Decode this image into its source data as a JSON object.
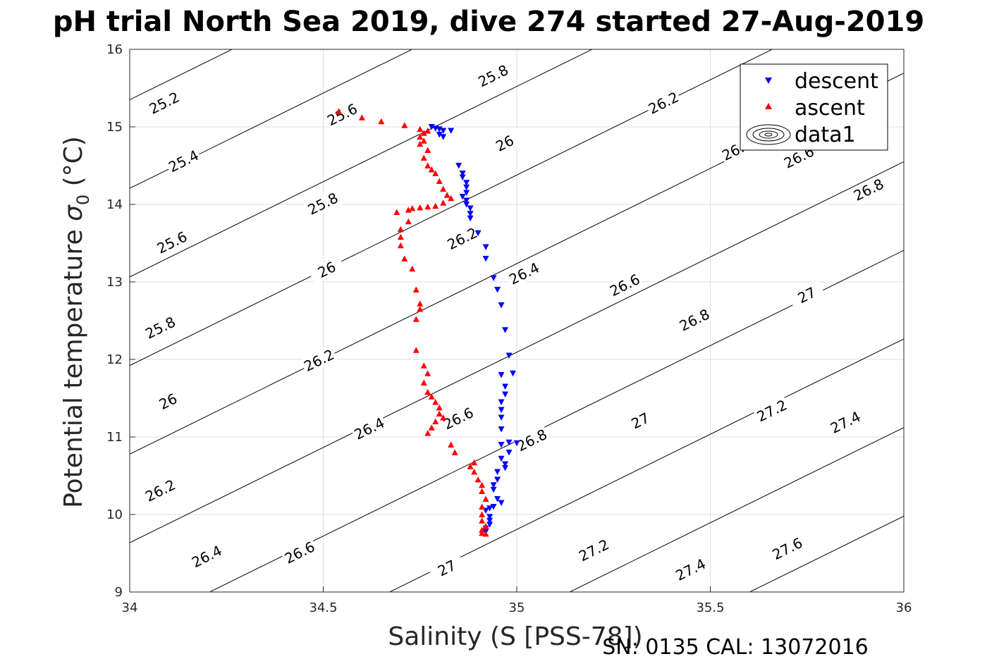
{
  "chart_data": {
    "type": "scatter",
    "title": "pH trial North Sea 2019, dive 274 started 27-Aug-2019",
    "xlabel": "Salinity (S [PSS-78])",
    "ylabel_text": "Potential temperature ",
    "ylabel_symbol": "σ",
    "ylabel_sub": "0",
    "ylabel_unit": " (°C)",
    "footer": "SN: 0135  CAL: 13072016",
    "xlim": [
      34,
      36
    ],
    "ylim": [
      9,
      16
    ],
    "xticks": [
      "34",
      "34.5",
      "35",
      "35.5",
      "36"
    ],
    "yticks": [
      "9",
      "10",
      "11",
      "12",
      "13",
      "14",
      "15",
      "16"
    ],
    "grid": true,
    "legend_position": "top-right",
    "legend": [
      "descent",
      "ascent",
      "data1"
    ],
    "colors": {
      "descent": "#0000ff",
      "ascent": "#ff0000",
      "contour": "#000000",
      "grid": "#dfdfdf"
    },
    "contours": {
      "levels": [
        25.2,
        25.4,
        25.6,
        25.8,
        26,
        26.2,
        26.4,
        26.6,
        26.8,
        27,
        27.2,
        27.4,
        27.6
      ],
      "labels": [
        {
          "text": "25.2",
          "x": 34.09,
          "y": 15.3
        },
        {
          "text": "25.4",
          "x": 34.14,
          "y": 14.55
        },
        {
          "text": "25.6",
          "x": 34.11,
          "y": 13.5
        },
        {
          "text": "25.8",
          "x": 34.08,
          "y": 12.4
        },
        {
          "text": "26",
          "x": 34.1,
          "y": 11.45
        },
        {
          "text": "26.2",
          "x": 34.08,
          "y": 10.3
        },
        {
          "text": "26.4",
          "x": 34.2,
          "y": 9.45
        },
        {
          "text": "25.6",
          "x": 34.55,
          "y": 15.15
        },
        {
          "text": "25.8",
          "x": 34.94,
          "y": 15.65
        },
        {
          "text": "25.8",
          "x": 34.5,
          "y": 14.0
        },
        {
          "text": "26",
          "x": 34.97,
          "y": 14.78
        },
        {
          "text": "26",
          "x": 34.51,
          "y": 13.15
        },
        {
          "text": "26.2",
          "x": 34.49,
          "y": 11.98
        },
        {
          "text": "26.2",
          "x": 35.38,
          "y": 15.3
        },
        {
          "text": "26.2",
          "x": 34.86,
          "y": 13.55
        },
        {
          "text": "26.4",
          "x": 34.62,
          "y": 11.1
        },
        {
          "text": "26.4",
          "x": 35.02,
          "y": 13.1
        },
        {
          "text": "26.4",
          "x": 35.57,
          "y": 14.7
        },
        {
          "text": "26.6",
          "x": 34.44,
          "y": 9.5
        },
        {
          "text": "26.6",
          "x": 34.85,
          "y": 11.23
        },
        {
          "text": "26.6",
          "x": 35.28,
          "y": 12.95
        },
        {
          "text": "26.6",
          "x": 35.73,
          "y": 14.6
        },
        {
          "text": "26.8",
          "x": 35.04,
          "y": 10.95
        },
        {
          "text": "26.8",
          "x": 35.46,
          "y": 12.5
        },
        {
          "text": "26.8",
          "x": 35.91,
          "y": 14.18
        },
        {
          "text": "27",
          "x": 34.82,
          "y": 9.3
        },
        {
          "text": "27",
          "x": 35.32,
          "y": 11.2
        },
        {
          "text": "27",
          "x": 35.75,
          "y": 12.82
        },
        {
          "text": "27.2",
          "x": 35.2,
          "y": 9.53
        },
        {
          "text": "27.2",
          "x": 35.66,
          "y": 11.33
        },
        {
          "text": "27.4",
          "x": 35.45,
          "y": 9.28
        },
        {
          "text": "27.4",
          "x": 35.85,
          "y": 11.18
        },
        {
          "text": "27.6",
          "x": 35.7,
          "y": 9.55
        }
      ]
    },
    "series": [
      {
        "name": "descent",
        "marker": "triangle-down",
        "points": [
          [
            34.78,
            15.0
          ],
          [
            34.79,
            14.98
          ],
          [
            34.8,
            14.97
          ],
          [
            34.81,
            14.95
          ],
          [
            34.83,
            14.95
          ],
          [
            34.8,
            14.9
          ],
          [
            34.81,
            14.87
          ],
          [
            34.85,
            14.5
          ],
          [
            34.86,
            14.4
          ],
          [
            34.86,
            14.35
          ],
          [
            34.87,
            14.28
          ],
          [
            34.87,
            14.22
          ],
          [
            34.87,
            14.15
          ],
          [
            34.86,
            14.1
          ],
          [
            34.87,
            14.05
          ],
          [
            34.87,
            14.0
          ],
          [
            34.88,
            13.95
          ],
          [
            34.88,
            13.88
          ],
          [
            34.88,
            13.82
          ],
          [
            34.9,
            13.63
          ],
          [
            34.92,
            13.45
          ],
          [
            34.92,
            13.3
          ],
          [
            34.94,
            13.05
          ],
          [
            34.95,
            12.9
          ],
          [
            34.96,
            12.7
          ],
          [
            34.97,
            12.38
          ],
          [
            34.98,
            12.05
          ],
          [
            34.99,
            11.82
          ],
          [
            34.96,
            11.8
          ],
          [
            34.97,
            11.65
          ],
          [
            34.97,
            11.55
          ],
          [
            34.96,
            11.45
          ],
          [
            34.96,
            11.35
          ],
          [
            34.96,
            11.25
          ],
          [
            34.96,
            11.1
          ],
          [
            34.96,
            10.9
          ],
          [
            34.98,
            10.93
          ],
          [
            35.0,
            10.92
          ],
          [
            34.98,
            10.8
          ],
          [
            34.96,
            10.72
          ],
          [
            34.97,
            10.65
          ],
          [
            34.97,
            10.6
          ],
          [
            34.95,
            10.55
          ],
          [
            34.95,
            10.45
          ],
          [
            34.94,
            10.38
          ],
          [
            34.94,
            10.32
          ],
          [
            34.95,
            10.2
          ],
          [
            34.96,
            10.15
          ],
          [
            34.94,
            10.1
          ],
          [
            34.93,
            10.08
          ],
          [
            34.92,
            10.05
          ],
          [
            34.93,
            9.97
          ],
          [
            34.93,
            9.92
          ],
          [
            34.93,
            9.87
          ],
          [
            34.92,
            9.82
          ],
          [
            34.92,
            9.78
          ]
        ]
      },
      {
        "name": "ascent",
        "marker": "triangle-up",
        "points": [
          [
            34.54,
            15.2
          ],
          [
            34.6,
            15.12
          ],
          [
            34.65,
            15.07
          ],
          [
            34.71,
            15.02
          ],
          [
            34.75,
            14.97
          ],
          [
            34.77,
            14.95
          ],
          [
            34.76,
            14.92
          ],
          [
            34.75,
            14.87
          ],
          [
            34.76,
            14.82
          ],
          [
            34.75,
            14.78
          ],
          [
            34.77,
            14.7
          ],
          [
            34.76,
            14.6
          ],
          [
            34.77,
            14.5
          ],
          [
            34.78,
            14.45
          ],
          [
            34.79,
            14.4
          ],
          [
            34.8,
            14.3
          ],
          [
            34.81,
            14.2
          ],
          [
            34.82,
            14.12
          ],
          [
            34.83,
            14.08
          ],
          [
            34.81,
            14.02
          ],
          [
            34.79,
            13.98
          ],
          [
            34.77,
            13.97
          ],
          [
            34.75,
            13.96
          ],
          [
            34.73,
            13.95
          ],
          [
            34.72,
            13.93
          ],
          [
            34.69,
            13.9
          ],
          [
            34.72,
            13.78
          ],
          [
            34.7,
            13.68
          ],
          [
            34.7,
            13.58
          ],
          [
            34.7,
            13.47
          ],
          [
            34.71,
            13.3
          ],
          [
            34.73,
            13.17
          ],
          [
            34.74,
            12.9
          ],
          [
            34.75,
            12.72
          ],
          [
            34.75,
            12.65
          ],
          [
            34.74,
            12.52
          ],
          [
            34.74,
            12.12
          ],
          [
            34.76,
            11.92
          ],
          [
            34.77,
            11.82
          ],
          [
            34.76,
            11.7
          ],
          [
            34.77,
            11.58
          ],
          [
            34.78,
            11.52
          ],
          [
            34.79,
            11.45
          ],
          [
            34.8,
            11.38
          ],
          [
            34.8,
            11.3
          ],
          [
            34.81,
            11.25
          ],
          [
            34.79,
            11.2
          ],
          [
            34.78,
            11.12
          ],
          [
            34.77,
            11.05
          ],
          [
            34.83,
            10.9
          ],
          [
            34.84,
            10.8
          ],
          [
            34.89,
            10.67
          ],
          [
            34.88,
            10.62
          ],
          [
            34.89,
            10.55
          ],
          [
            34.9,
            10.45
          ],
          [
            34.91,
            10.38
          ],
          [
            34.91,
            10.3
          ],
          [
            34.92,
            10.2
          ],
          [
            34.91,
            10.1
          ],
          [
            34.91,
            10.0
          ],
          [
            34.91,
            9.92
          ],
          [
            34.92,
            9.85
          ],
          [
            34.91,
            9.8
          ],
          [
            34.91,
            9.76
          ],
          [
            34.92,
            9.75
          ]
        ]
      }
    ]
  }
}
